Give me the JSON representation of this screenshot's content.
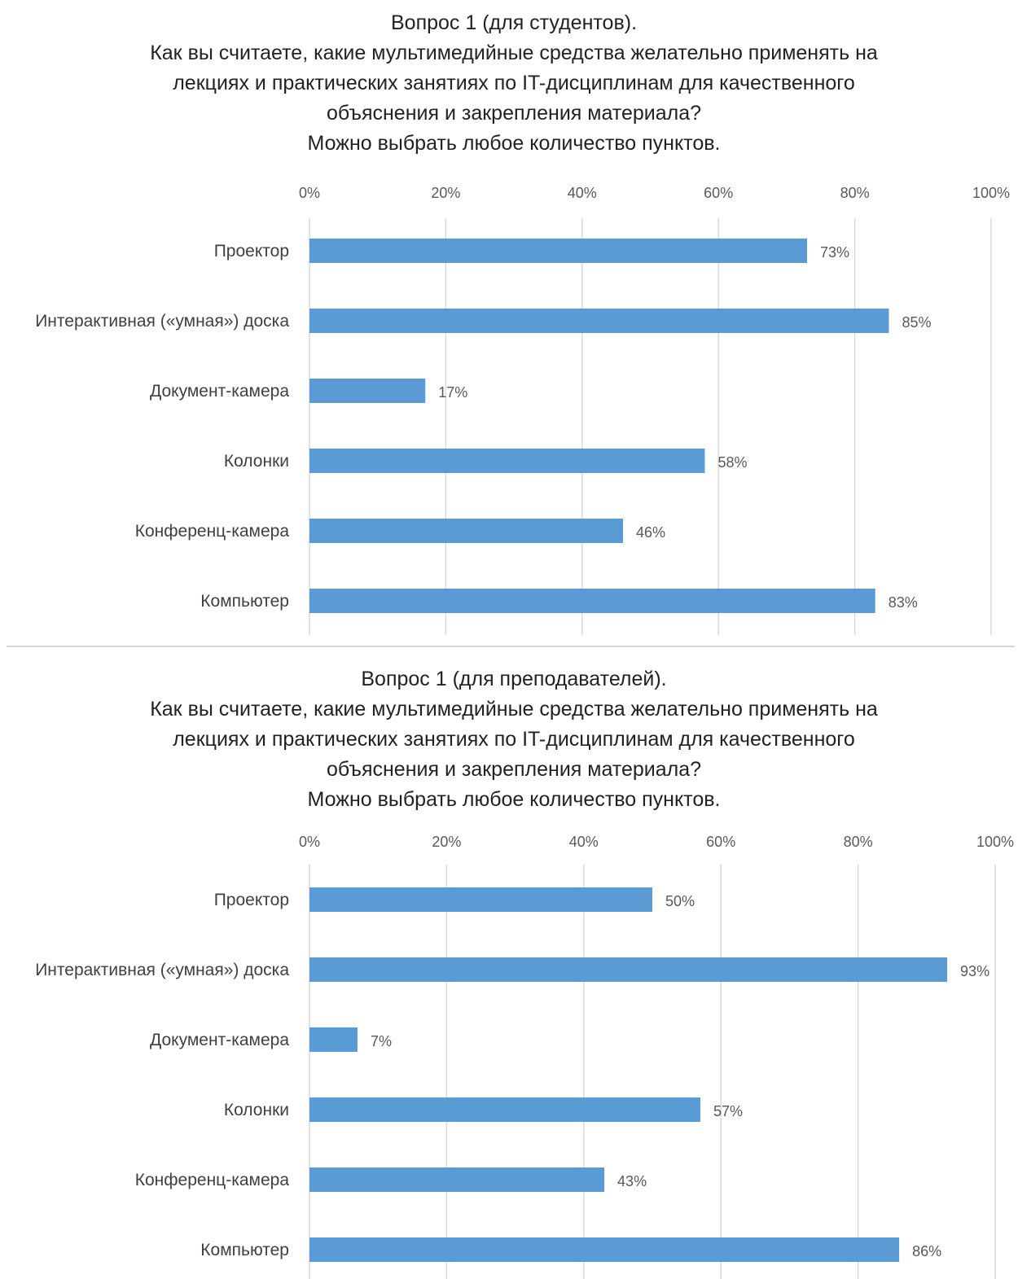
{
  "chart_data": [
    {
      "type": "bar",
      "orientation": "horizontal",
      "title_lines": [
        "Вопрос 1 (для студентов).",
        "Как вы считаете, какие мультимедийные средства желательно применять на",
        "лекциях и практических занятиях по IT-дисциплинам для качественного",
        "объяснения и закрепления материала?",
        "Можно выбрать любое количество пунктов."
      ],
      "categories": [
        "Проектор",
        "Интерактивная («умная») доска",
        "Документ-камера",
        "Колонки",
        "Конференц-камера",
        "Компьютер"
      ],
      "values": [
        73,
        85,
        17,
        58,
        46,
        83
      ],
      "data_labels": [
        "73%",
        "85%",
        "17%",
        "58%",
        "46%",
        "83%"
      ],
      "xlim": [
        0,
        100
      ],
      "ticks": [
        "0%",
        "20%",
        "40%",
        "60%",
        "80%",
        "100%"
      ],
      "axis_position": "top",
      "grid": true,
      "bar_color": "#5b9bd5"
    },
    {
      "type": "bar",
      "orientation": "horizontal",
      "title_lines": [
        "Вопрос 1 (для преподавателей).",
        "Как вы считаете, какие мультимедийные средства желательно применять на",
        "лекциях и практических занятиях по IT-дисциплинам для качественного",
        "объяснения и закрепления материала?",
        "Можно выбрать любое количество пунктов."
      ],
      "categories": [
        "Проектор",
        "Интерактивная («умная») доска",
        "Документ-камера",
        "Колонки",
        "Конференц-камера",
        "Компьютер"
      ],
      "values": [
        50,
        93,
        7,
        57,
        43,
        86
      ],
      "data_labels": [
        "50%",
        "93%",
        "7%",
        "57%",
        "43%",
        "86%"
      ],
      "xlim": [
        0,
        100
      ],
      "ticks": [
        "0%",
        "20%",
        "40%",
        "60%",
        "80%",
        "100%"
      ],
      "axis_position": "top",
      "grid": true,
      "bar_color": "#5b9bd5"
    }
  ]
}
